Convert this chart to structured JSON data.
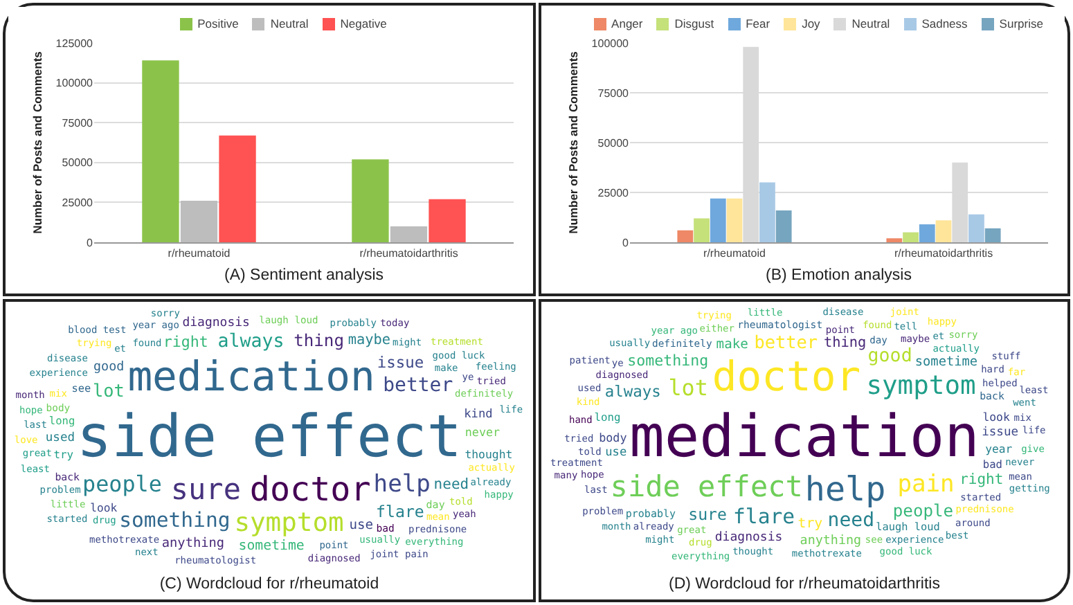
{
  "chart_data": [
    {
      "type": "bar",
      "categories": [
        "r/rheumatoid",
        "r/rheumatoidarthritis"
      ],
      "series": [
        {
          "name": "Positive",
          "color": "#8bc34a",
          "values": [
            114000,
            52000
          ]
        },
        {
          "name": "Neutral",
          "color": "#bdbdbd",
          "values": [
            26000,
            10000
          ]
        },
        {
          "name": "Negative",
          "color": "#ff5252",
          "values": [
            67000,
            27000
          ]
        }
      ],
      "ylabel": "Number of Posts and Comments",
      "ylim": [
        0,
        125000
      ],
      "yticks": [
        0,
        25000,
        50000,
        75000,
        100000,
        125000
      ],
      "grid": "y",
      "legend": "top",
      "annotations": [
        "(A) Sentiment analysis"
      ]
    },
    {
      "type": "bar",
      "categories": [
        "r/rheumatoid",
        "r/rheumatoidarthritis"
      ],
      "series": [
        {
          "name": "Anger",
          "color": "#ee8866",
          "values": [
            6000,
            2000
          ]
        },
        {
          "name": "Disgust",
          "color": "#c5e17a",
          "values": [
            12000,
            5000
          ]
        },
        {
          "name": "Fear",
          "color": "#6fa8dc",
          "values": [
            22000,
            9000
          ]
        },
        {
          "name": "Joy",
          "color": "#ffe599",
          "values": [
            22000,
            11000
          ]
        },
        {
          "name": "Neutral",
          "color": "#d9d9d9",
          "values": [
            98000,
            40000
          ]
        },
        {
          "name": "Sadness",
          "color": "#a8c9e6",
          "values": [
            30000,
            14000
          ]
        },
        {
          "name": "Surprise",
          "color": "#76a5bf",
          "values": [
            16000,
            7000
          ]
        }
      ],
      "ylabel": "Number of Posts and Comments",
      "ylim": [
        0,
        100000
      ],
      "yticks": [
        0,
        25000,
        50000,
        75000,
        100000
      ],
      "grid": "y",
      "legend": "top",
      "annotations": [
        "(B) Emotion analysis"
      ]
    },
    {
      "type": "other",
      "categories": [
        "side effect",
        "medication",
        "doctor",
        "sure",
        "symptom",
        "help",
        "people",
        "something",
        "better",
        "always",
        "lot",
        "thing",
        "flare",
        "issue",
        "right",
        "need",
        "maybe",
        "sometime",
        "use",
        "anything",
        "good",
        "diagnosis",
        "used",
        "kind",
        "never",
        "thought",
        "look",
        "try",
        "long",
        "see",
        "day",
        "back",
        "bad",
        "body",
        "laugh loud",
        "definitely",
        "found",
        "make",
        "point",
        "might",
        "actually",
        "usually",
        "probably",
        "problem",
        "experience",
        "mix",
        "et",
        "great",
        "good luck",
        "told",
        "mean",
        "ye",
        "prednisone",
        "rheumatologist",
        "methotrexate",
        "diagnosed",
        "already",
        "drug",
        "little",
        "least",
        "year ago",
        "disease",
        "last",
        "trying",
        "love",
        "tried",
        "month",
        "today",
        "treatment",
        "hope",
        "everything",
        "happy",
        "started",
        "feeling",
        "joint pain",
        "blood test",
        "sorry",
        "life",
        "yeah",
        "next"
      ],
      "colors": [
        "#31688e",
        "#31688e",
        "#440154",
        "#46327e",
        "#b5de2b",
        "#3e4989",
        "#26828e",
        "#31688e",
        "#3e4989",
        "#1f9e89",
        "#35b779",
        "#482878",
        "#26828e",
        "#3e4989",
        "#35b779",
        "#26828e",
        "#26828e",
        "#35b779",
        "#3e4989",
        "#482878",
        "#31688e",
        "#482878",
        "#26828e",
        "#3e4989",
        "#6ece58",
        "#26828e",
        "#3e4989",
        "#1f9e89",
        "#35b779",
        "#31688e",
        "#6ece58",
        "#482878",
        "#440154",
        "#6ece58",
        "#6ece58",
        "#6ece58",
        "#26828e",
        "#26828e",
        "#31688e",
        "#26828e",
        "#fde725",
        "#35b779",
        "#26828e",
        "#26828e",
        "#26828e",
        "#fde725",
        "#26828e",
        "#1f9e89",
        "#26828e",
        "#b5de2b",
        "#fde725",
        "#3e4989",
        "#3e4989",
        "#3e4989",
        "#3e4989",
        "#482878",
        "#26828e",
        "#1f9e89",
        "#6ece58",
        "#1f9e89",
        "#31688e",
        "#26828e",
        "#26828e",
        "#fde725",
        "#fde725",
        "#482878",
        "#482878",
        "#482878",
        "#b5de2b",
        "#35b779",
        "#35b779",
        "#35b779",
        "#26828e",
        "#26828e",
        "#3e4989",
        "#31688e",
        "#26828e",
        "#26828e",
        "#482878",
        "#26828e"
      ],
      "annotations": [
        "(C) Wordcloud for r/rheumatoid"
      ]
    },
    {
      "type": "other",
      "categories": [
        "medication",
        "doctor",
        "help",
        "side effect",
        "symptom",
        "pain",
        "lot",
        "flare",
        "need",
        "good",
        "better",
        "people",
        "sure",
        "always",
        "something",
        "right",
        "thing",
        "try",
        "make",
        "sometime",
        "anything",
        "diagnosis",
        "issue",
        "use",
        "body",
        "look",
        "year",
        "long",
        "bad",
        "laugh loud",
        "probably",
        "back",
        "rheumatologist",
        "definitely",
        "day",
        "started",
        "point",
        "great",
        "diagnosed",
        "maybe",
        "actually",
        "prednisone",
        "helped",
        "told",
        "experience",
        "never",
        "see",
        "hope",
        "tried",
        "hand",
        "methotrexate",
        "either",
        "kind",
        "found",
        "hard",
        "thought",
        "mix",
        "treatment",
        "went",
        "life",
        "give",
        "already",
        "mean",
        "around",
        "drug",
        "last",
        "used",
        "tell",
        "ye",
        "year ago",
        "little",
        "disease",
        "et",
        "least",
        "getting",
        "good luck",
        "problem",
        "everything",
        "usually",
        "might",
        "trying",
        "sorry",
        "stuff",
        "best",
        "patient",
        "month",
        "joint",
        "happy",
        "far",
        "many"
      ],
      "colors": [
        "#440154",
        "#fde725",
        "#31688e",
        "#6ece58",
        "#1f9e89",
        "#fde725",
        "#b5de2b",
        "#26828e",
        "#26828e",
        "#b5de2b",
        "#fde725",
        "#35b779",
        "#26828e",
        "#26828e",
        "#35b779",
        "#35b779",
        "#482878",
        "#fde725",
        "#35b779",
        "#26828e",
        "#6ece58",
        "#482878",
        "#3e4989",
        "#26828e",
        "#3e4989",
        "#3e4989",
        "#26828e",
        "#1f9e89",
        "#3e4989",
        "#26828e",
        "#26828e",
        "#31688e",
        "#31688e",
        "#31688e",
        "#31688e",
        "#3e4989",
        "#482878",
        "#6ece58",
        "#482878",
        "#482878",
        "#1f9e89",
        "#fde725",
        "#3e4989",
        "#3e4989",
        "#26828e",
        "#26828e",
        "#6ece58",
        "#482878",
        "#3e4989",
        "#440154",
        "#26828e",
        "#6ece58",
        "#fde725",
        "#b5de2b",
        "#3e4989",
        "#26828e",
        "#3e4989",
        "#3e4989",
        "#26828e",
        "#3e4989",
        "#35b779",
        "#3e4989",
        "#3e4989",
        "#3e4989",
        "#b5de2b",
        "#3e4989",
        "#3e4989",
        "#26828e",
        "#3e4989",
        "#35b779",
        "#35b779",
        "#26828e",
        "#26828e",
        "#3e4989",
        "#26828e",
        "#35b779",
        "#3e4989",
        "#35b779",
        "#26828e",
        "#26828e",
        "#fde725",
        "#6ece58",
        "#3e4989",
        "#26828e",
        "#3e4989",
        "#26828e",
        "#fde725",
        "#fde725",
        "#fde725",
        "#482878"
      ],
      "annotations": [
        "(D) Wordcloud for r/rheumatoidarthritis"
      ]
    }
  ]
}
